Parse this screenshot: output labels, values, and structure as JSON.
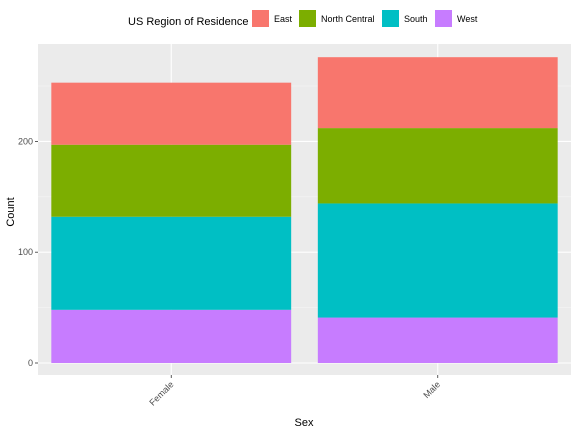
{
  "chart_data": {
    "type": "bar",
    "stacked": true,
    "categories": [
      "Female",
      "Male"
    ],
    "series": [
      {
        "name": "West",
        "values": [
          48,
          41
        ],
        "color": "#C77CFF"
      },
      {
        "name": "South",
        "values": [
          84,
          103
        ],
        "color": "#00BFC4"
      },
      {
        "name": "North Central",
        "values": [
          65,
          68
        ],
        "color": "#7CAE00"
      },
      {
        "name": "East",
        "values": [
          56,
          64
        ],
        "color": "#F8766D"
      }
    ],
    "xlabel": "Sex",
    "ylabel": "Count",
    "ylim": [
      0,
      285
    ],
    "yticks": [
      0,
      100,
      200
    ],
    "grid": true,
    "legend": {
      "title": "US Region of Residence",
      "position": "top",
      "entries": [
        "East",
        "North Central",
        "South",
        "West"
      ]
    },
    "panel_background": "#EBEBEB"
  }
}
